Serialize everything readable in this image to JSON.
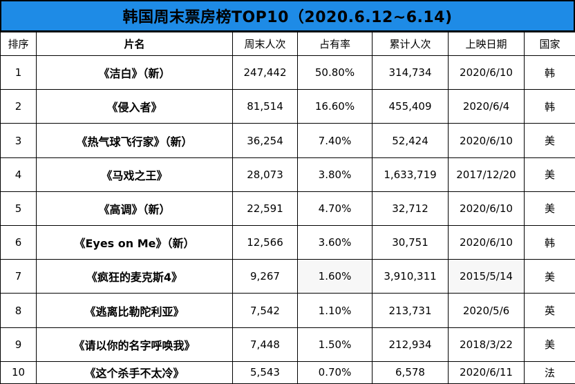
{
  "title": "韩国周末票房榜TOP10（2020.6.12~6.14)",
  "columns": [
    "排序",
    "片名",
    "周末人次",
    "占有率",
    "累计人次",
    "上映日期",
    "国家"
  ],
  "rows": [
    {
      "rank": "1",
      "name": "《洁白》（新）",
      "weekend": "247,442",
      "share": "50.80%",
      "total": "314,734",
      "date": "2020/6/10",
      "country": "韩"
    },
    {
      "rank": "2",
      "name": "《侵入者》",
      "weekend": "81,514",
      "share": "16.60%",
      "total": "455,409",
      "date": "2020/6/4",
      "country": "韩"
    },
    {
      "rank": "3",
      "name": "《热气球飞行家》（新）",
      "weekend": "36,254",
      "share": "7.40%",
      "total": "52,424",
      "date": "2020/6/10",
      "country": "美"
    },
    {
      "rank": "4",
      "name": "《马戏之王》",
      "weekend": "28,073",
      "share": "3.80%",
      "total": "1,633,719",
      "date": "2017/12/20",
      "country": "美"
    },
    {
      "rank": "5",
      "name": "《高调》（新）",
      "weekend": "22,591",
      "share": "4.70%",
      "total": "32,712",
      "date": "2020/6/10",
      "country": "美"
    },
    {
      "rank": "6",
      "name": "《Eyes on Me》（新）",
      "weekend": "12,566",
      "share": "3.60%",
      "total": "30,751",
      "date": "2020/6/10",
      "country": "韩"
    },
    {
      "rank": "7",
      "name": "《疯狂的麦克斯4》",
      "weekend": "9,267",
      "share": "1.60%",
      "total": "3,910,311",
      "date": "2015/5/14",
      "country": "美"
    },
    {
      "rank": "8",
      "name": "《逃离比勒陀利亚》",
      "weekend": "7,542",
      "share": "1.10%",
      "total": "213,731",
      "date": "2020/5/6",
      "country": "英"
    },
    {
      "rank": "9",
      "name": "《请以你的名字呼唤我》",
      "weekend": "7,448",
      "share": "1.50%",
      "total": "212,934",
      "date": "2018/3/22",
      "country": "美"
    },
    {
      "rank": "10",
      "name": "《这个杀手不太冷》",
      "weekend": "5,543",
      "share": "0.70%",
      "total": "6,578",
      "date": "2020/6/11",
      "country": "法"
    }
  ],
  "colors": {
    "title_bg": "#1e8be6",
    "border": "#000000"
  }
}
